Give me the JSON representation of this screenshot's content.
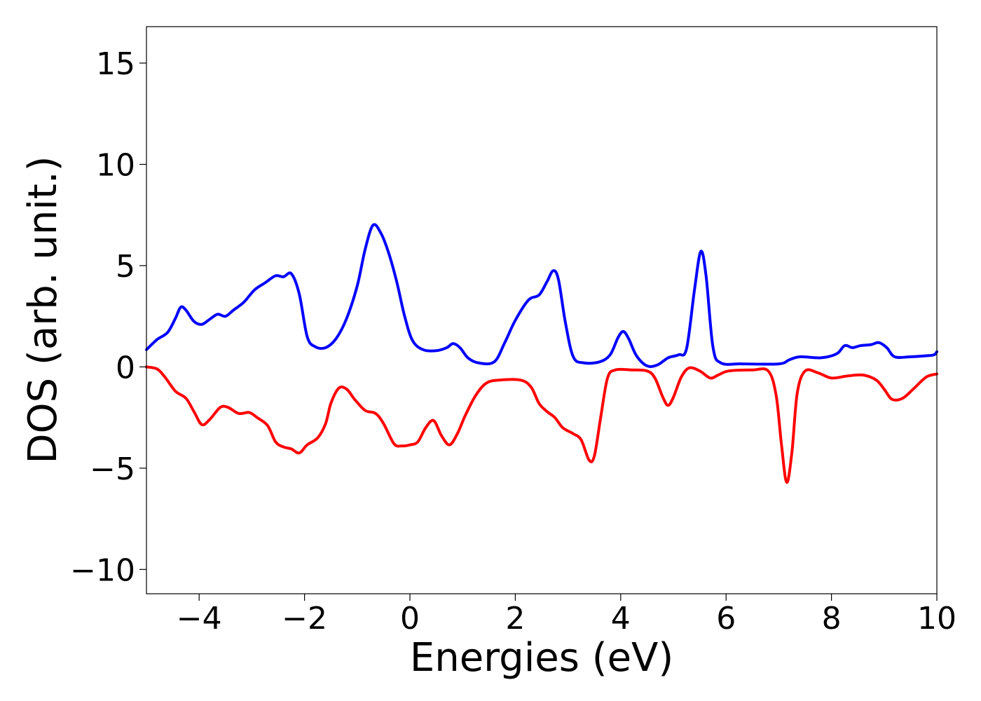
{
  "chart_data": {
    "type": "line",
    "title": "",
    "xlabel": "Energies (eV)",
    "ylabel": "DOS (arb. unit.)",
    "xlim": [
      -5,
      10
    ],
    "ylim": [
      -11.2,
      16.8
    ],
    "xticks": [
      -4,
      -2,
      0,
      2,
      4,
      6,
      8,
      10
    ],
    "xtick_labels": [
      "−4",
      "−2",
      "0",
      "2",
      "4",
      "6",
      "8",
      "10"
    ],
    "yticks": [
      -10,
      -5,
      0,
      5,
      10,
      15
    ],
    "ytick_labels": [
      "−10",
      "−5",
      "0",
      "5",
      "10",
      "15"
    ],
    "grid": false,
    "legend": "none",
    "series": [
      {
        "color": "#0000ff",
        "points": [
          [
            -5.0,
            0.85
          ],
          [
            -4.8,
            1.35
          ],
          [
            -4.6,
            1.7
          ],
          [
            -4.45,
            2.4
          ],
          [
            -4.35,
            2.95
          ],
          [
            -4.25,
            2.8
          ],
          [
            -4.1,
            2.25
          ],
          [
            -3.95,
            2.1
          ],
          [
            -3.8,
            2.35
          ],
          [
            -3.65,
            2.6
          ],
          [
            -3.5,
            2.5
          ],
          [
            -3.35,
            2.8
          ],
          [
            -3.15,
            3.2
          ],
          [
            -2.95,
            3.8
          ],
          [
            -2.75,
            4.15
          ],
          [
            -2.55,
            4.5
          ],
          [
            -2.4,
            4.45
          ],
          [
            -2.25,
            4.6
          ],
          [
            -2.1,
            3.6
          ],
          [
            -1.95,
            1.5
          ],
          [
            -1.8,
            1.0
          ],
          [
            -1.6,
            0.95
          ],
          [
            -1.4,
            1.4
          ],
          [
            -1.2,
            2.4
          ],
          [
            -1.0,
            4.0
          ],
          [
            -0.85,
            5.8
          ],
          [
            -0.7,
            7.0
          ],
          [
            -0.55,
            6.6
          ],
          [
            -0.4,
            5.6
          ],
          [
            -0.25,
            4.2
          ],
          [
            -0.1,
            2.5
          ],
          [
            0.05,
            1.3
          ],
          [
            0.25,
            0.85
          ],
          [
            0.5,
            0.8
          ],
          [
            0.7,
            0.95
          ],
          [
            0.82,
            1.15
          ],
          [
            0.95,
            0.95
          ],
          [
            1.1,
            0.45
          ],
          [
            1.3,
            0.2
          ],
          [
            1.6,
            0.25
          ],
          [
            1.8,
            1.2
          ],
          [
            2.0,
            2.3
          ],
          [
            2.25,
            3.3
          ],
          [
            2.45,
            3.55
          ],
          [
            2.6,
            4.2
          ],
          [
            2.72,
            4.75
          ],
          [
            2.82,
            4.3
          ],
          [
            2.95,
            2.2
          ],
          [
            3.1,
            0.5
          ],
          [
            3.3,
            0.2
          ],
          [
            3.6,
            0.25
          ],
          [
            3.8,
            0.6
          ],
          [
            3.95,
            1.45
          ],
          [
            4.05,
            1.75
          ],
          [
            4.15,
            1.4
          ],
          [
            4.3,
            0.55
          ],
          [
            4.5,
            0.05
          ],
          [
            4.7,
            0.1
          ],
          [
            4.9,
            0.45
          ],
          [
            5.1,
            0.6
          ],
          [
            5.25,
            0.9
          ],
          [
            5.4,
            3.8
          ],
          [
            5.52,
            5.7
          ],
          [
            5.62,
            4.5
          ],
          [
            5.75,
            1.0
          ],
          [
            5.9,
            0.2
          ],
          [
            6.3,
            0.15
          ],
          [
            7.0,
            0.15
          ],
          [
            7.2,
            0.35
          ],
          [
            7.4,
            0.5
          ],
          [
            7.8,
            0.45
          ],
          [
            8.1,
            0.65
          ],
          [
            8.25,
            1.05
          ],
          [
            8.4,
            0.95
          ],
          [
            8.55,
            1.05
          ],
          [
            8.75,
            1.1
          ],
          [
            8.9,
            1.2
          ],
          [
            9.05,
            0.95
          ],
          [
            9.2,
            0.5
          ],
          [
            9.5,
            0.5
          ],
          [
            9.8,
            0.55
          ],
          [
            9.95,
            0.6
          ],
          [
            10.0,
            0.75
          ]
        ]
      },
      {
        "color": "#ff0000",
        "points": [
          [
            -5.0,
            0.0
          ],
          [
            -4.8,
            -0.1
          ],
          [
            -4.65,
            -0.5
          ],
          [
            -4.45,
            -1.2
          ],
          [
            -4.25,
            -1.55
          ],
          [
            -4.1,
            -2.2
          ],
          [
            -3.95,
            -2.85
          ],
          [
            -3.8,
            -2.6
          ],
          [
            -3.6,
            -2.0
          ],
          [
            -3.45,
            -2.0
          ],
          [
            -3.25,
            -2.3
          ],
          [
            -3.05,
            -2.25
          ],
          [
            -2.9,
            -2.5
          ],
          [
            -2.7,
            -2.9
          ],
          [
            -2.55,
            -3.7
          ],
          [
            -2.4,
            -3.95
          ],
          [
            -2.25,
            -4.05
          ],
          [
            -2.1,
            -4.25
          ],
          [
            -1.95,
            -3.85
          ],
          [
            -1.75,
            -3.5
          ],
          [
            -1.6,
            -2.8
          ],
          [
            -1.5,
            -1.8
          ],
          [
            -1.35,
            -1.05
          ],
          [
            -1.2,
            -1.1
          ],
          [
            -1.05,
            -1.6
          ],
          [
            -0.85,
            -2.15
          ],
          [
            -0.65,
            -2.3
          ],
          [
            -0.5,
            -2.8
          ],
          [
            -0.3,
            -3.8
          ],
          [
            -0.15,
            -3.9
          ],
          [
            0.0,
            -3.85
          ],
          [
            0.15,
            -3.7
          ],
          [
            0.3,
            -3.0
          ],
          [
            0.45,
            -2.65
          ],
          [
            0.6,
            -3.4
          ],
          [
            0.75,
            -3.85
          ],
          [
            0.9,
            -3.3
          ],
          [
            1.05,
            -2.4
          ],
          [
            1.25,
            -1.4
          ],
          [
            1.45,
            -0.8
          ],
          [
            1.7,
            -0.65
          ],
          [
            2.1,
            -0.65
          ],
          [
            2.3,
            -1.0
          ],
          [
            2.45,
            -1.8
          ],
          [
            2.6,
            -2.2
          ],
          [
            2.75,
            -2.5
          ],
          [
            2.9,
            -3.0
          ],
          [
            3.1,
            -3.3
          ],
          [
            3.25,
            -3.6
          ],
          [
            3.4,
            -4.6
          ],
          [
            3.5,
            -4.4
          ],
          [
            3.62,
            -2.5
          ],
          [
            3.75,
            -0.55
          ],
          [
            3.9,
            -0.15
          ],
          [
            4.2,
            -0.15
          ],
          [
            4.5,
            -0.2
          ],
          [
            4.65,
            -0.55
          ],
          [
            4.8,
            -1.5
          ],
          [
            4.9,
            -1.9
          ],
          [
            5.0,
            -1.5
          ],
          [
            5.15,
            -0.5
          ],
          [
            5.3,
            -0.05
          ],
          [
            5.5,
            -0.2
          ],
          [
            5.7,
            -0.55
          ],
          [
            5.85,
            -0.4
          ],
          [
            6.05,
            -0.2
          ],
          [
            6.5,
            -0.15
          ],
          [
            6.8,
            -0.2
          ],
          [
            6.95,
            -1.4
          ],
          [
            7.05,
            -3.8
          ],
          [
            7.15,
            -5.7
          ],
          [
            7.25,
            -4.2
          ],
          [
            7.35,
            -1.3
          ],
          [
            7.5,
            -0.2
          ],
          [
            7.75,
            -0.3
          ],
          [
            8.0,
            -0.55
          ],
          [
            8.3,
            -0.45
          ],
          [
            8.6,
            -0.4
          ],
          [
            8.85,
            -0.65
          ],
          [
            9.0,
            -1.1
          ],
          [
            9.15,
            -1.6
          ],
          [
            9.35,
            -1.55
          ],
          [
            9.55,
            -1.1
          ],
          [
            9.8,
            -0.5
          ],
          [
            10.0,
            -0.35
          ]
        ]
      }
    ]
  }
}
